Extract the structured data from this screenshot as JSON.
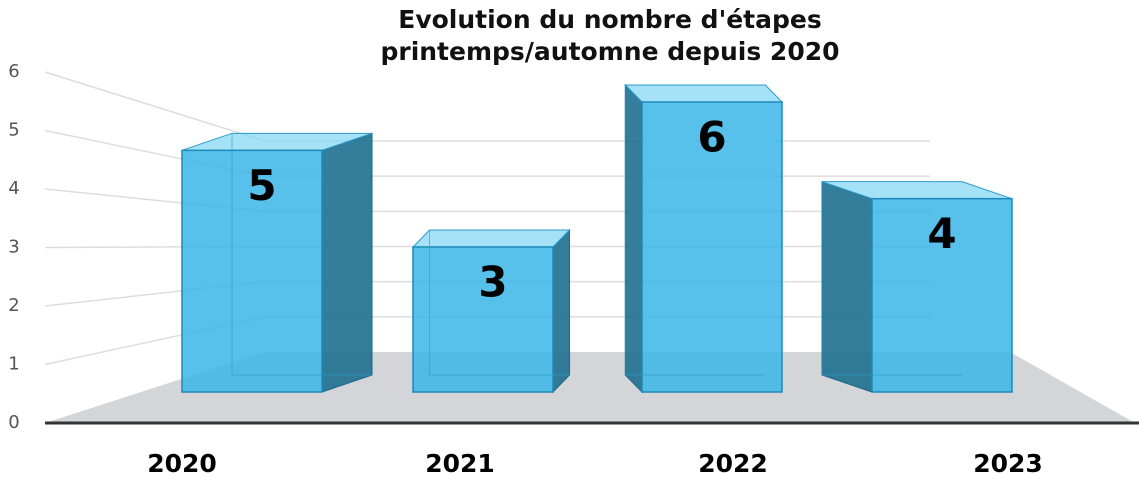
{
  "chart_data": {
    "type": "bar",
    "title": "Evolution du nombre d'étapes printemps/automne depuis 2020",
    "categories": [
      "2020",
      "2021",
      "2022",
      "2023"
    ],
    "values": [
      5,
      3,
      6,
      4
    ],
    "color": "#3ab6e8",
    "ylim": [
      0,
      6
    ],
    "yticks": [
      0,
      1,
      2,
      3,
      4,
      5,
      6
    ],
    "grid": true
  }
}
